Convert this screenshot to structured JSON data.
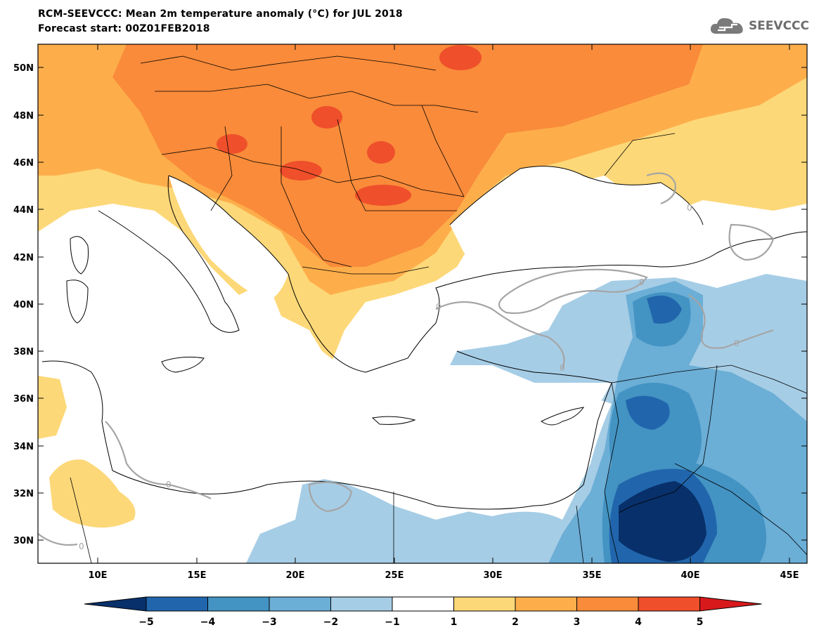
{
  "header": {
    "title_line1": "RCM-SEEVCCC: Mean 2m temperature anomaly (°C) for JUL 2018",
    "title_line2": "Forecast start: 00Z01FEB2018",
    "logo_text": "SEEVCCC"
  },
  "map": {
    "lat_labels": [
      "50N",
      "48N",
      "46N",
      "44N",
      "42N",
      "40N",
      "38N",
      "36N",
      "34N",
      "32N",
      "30N"
    ],
    "lon_labels": [
      "10E",
      "15E",
      "20E",
      "25E",
      "30E",
      "35E",
      "40E",
      "45E"
    ],
    "contour_label": "0"
  },
  "colorbar": {
    "tick_labels": [
      "−5",
      "−4",
      "−3",
      "−2",
      "−1",
      "1",
      "2",
      "3",
      "4",
      "5"
    ],
    "colors": [
      "#08306b",
      "#2166ac",
      "#4393c3",
      "#6baed6",
      "#a6cde6",
      "#ffffff",
      "#fdd878",
      "#fdae4b",
      "#f98b3a",
      "#ef4f2a",
      "#d7191c"
    ]
  }
}
